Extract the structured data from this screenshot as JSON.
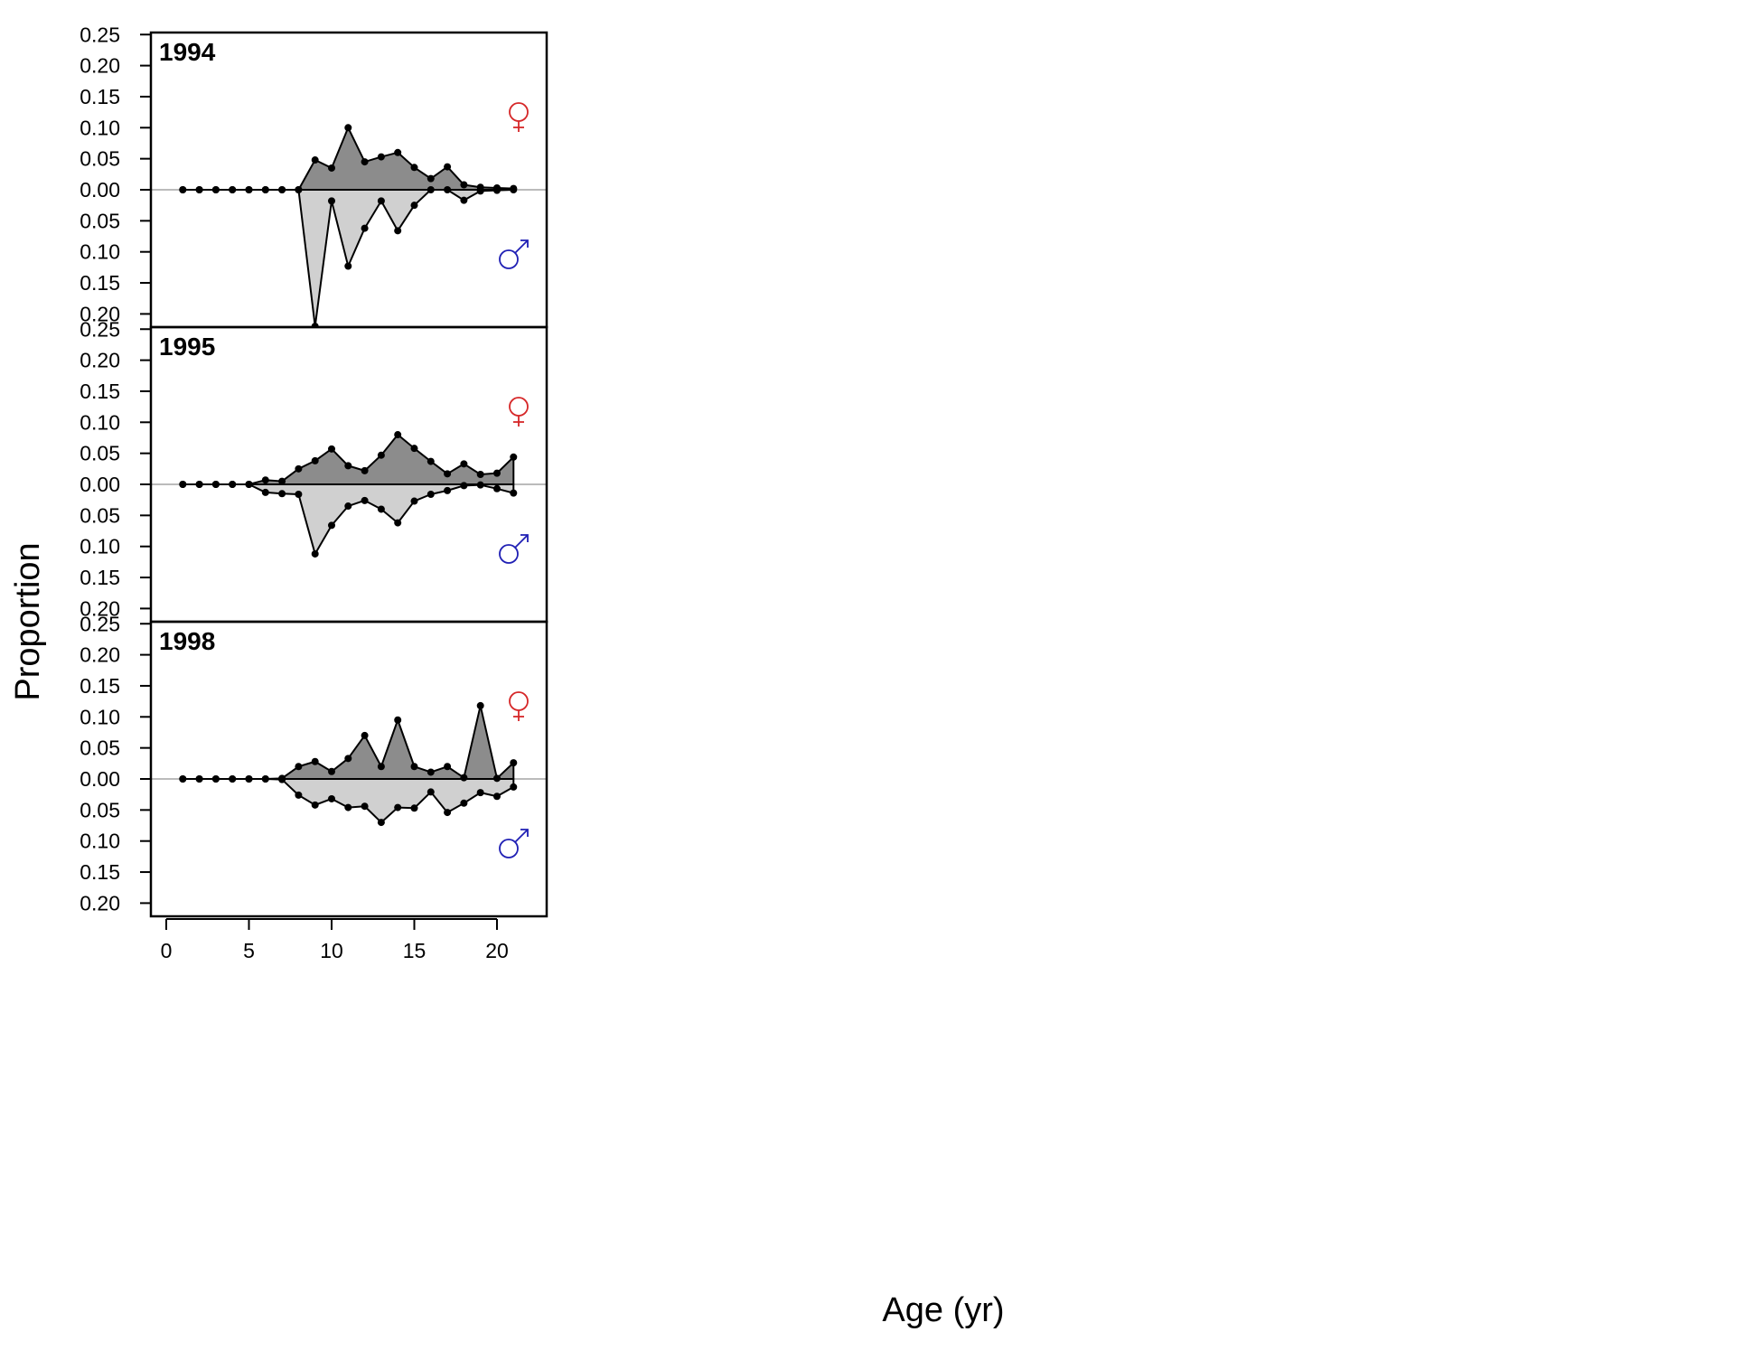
{
  "chart_data": {
    "type": "area",
    "ylabel": "Proportion",
    "xlabel": "Age (yr)",
    "x_ticks": [
      0,
      5,
      10,
      15,
      20
    ],
    "xlim": [
      -1,
      23
    ],
    "y_ticks_female": [
      0.25,
      0.2,
      0.15,
      0.1,
      0.05,
      0.0
    ],
    "y_ticks_male": [
      0.05,
      0.1,
      0.15,
      0.2
    ],
    "ylim": [
      -0.22,
      0.25
    ],
    "grid": false,
    "colors": {
      "female_fill": "#8c8c8c",
      "male_fill": "#d0d0d0",
      "zero_line": "#bbbbbb",
      "female_symbol": "#d62728",
      "male_symbol": "#1f1fb4",
      "points": "#000000"
    },
    "legend_symbols": {
      "female": {
        "glyph": "♀",
        "icon": "female-symbol-icon"
      },
      "male": {
        "glyph": "♂",
        "icon": "male-symbol-icon"
      }
    },
    "panels": [
      {
        "year": "1994",
        "ages": [
          1,
          2,
          3,
          4,
          5,
          6,
          7,
          8,
          9,
          10,
          11,
          12,
          13,
          14,
          15,
          16,
          17,
          18,
          19,
          20,
          21
        ],
        "female": [
          0,
          0,
          0,
          0,
          0,
          0,
          0,
          0,
          0.048,
          0.035,
          0.1,
          0.045,
          0.053,
          0.06,
          0.036,
          0.018,
          0.037,
          0.008,
          0.004,
          0.003,
          0.002
        ],
        "male": [
          0,
          0,
          0,
          0,
          0,
          0,
          0,
          0,
          0.22,
          0.018,
          0.123,
          0.062,
          0.018,
          0.066,
          0.025,
          0,
          0,
          0.017,
          0.002,
          0.001,
          0
        ]
      },
      {
        "year": "1995",
        "ages": [
          1,
          2,
          3,
          4,
          5,
          6,
          7,
          8,
          9,
          10,
          11,
          12,
          13,
          14,
          15,
          16,
          17,
          18,
          19,
          20,
          21
        ],
        "female": [
          0,
          0,
          0,
          0,
          0,
          0.007,
          0.005,
          0.025,
          0.038,
          0.057,
          0.03,
          0.022,
          0.047,
          0.08,
          0.058,
          0.037,
          0.017,
          0.033,
          0.016,
          0.018,
          0.044
        ],
        "male": [
          0,
          0,
          0,
          0,
          0,
          0.013,
          0.015,
          0.016,
          0.112,
          0.066,
          0.035,
          0.026,
          0.04,
          0.062,
          0.027,
          0.016,
          0.01,
          0.002,
          0.001,
          0.007,
          0.014
        ]
      },
      {
        "year": "1998",
        "ages": [
          1,
          2,
          3,
          4,
          5,
          6,
          7,
          8,
          9,
          10,
          11,
          12,
          13,
          14,
          15,
          16,
          17,
          18,
          19,
          20,
          21
        ],
        "female": [
          0,
          0,
          0,
          0,
          0,
          0,
          0.001,
          0.02,
          0.028,
          0.012,
          0.033,
          0.07,
          0.02,
          0.095,
          0.02,
          0.011,
          0.02,
          0.002,
          0.118,
          0.001,
          0.026
        ],
        "male": [
          0,
          0,
          0,
          0,
          0,
          0,
          0.001,
          0.026,
          0.042,
          0.032,
          0.046,
          0.044,
          0.07,
          0.046,
          0.047,
          0.021,
          0.054,
          0.039,
          0.022,
          0.028,
          0.013
        ]
      }
    ]
  }
}
